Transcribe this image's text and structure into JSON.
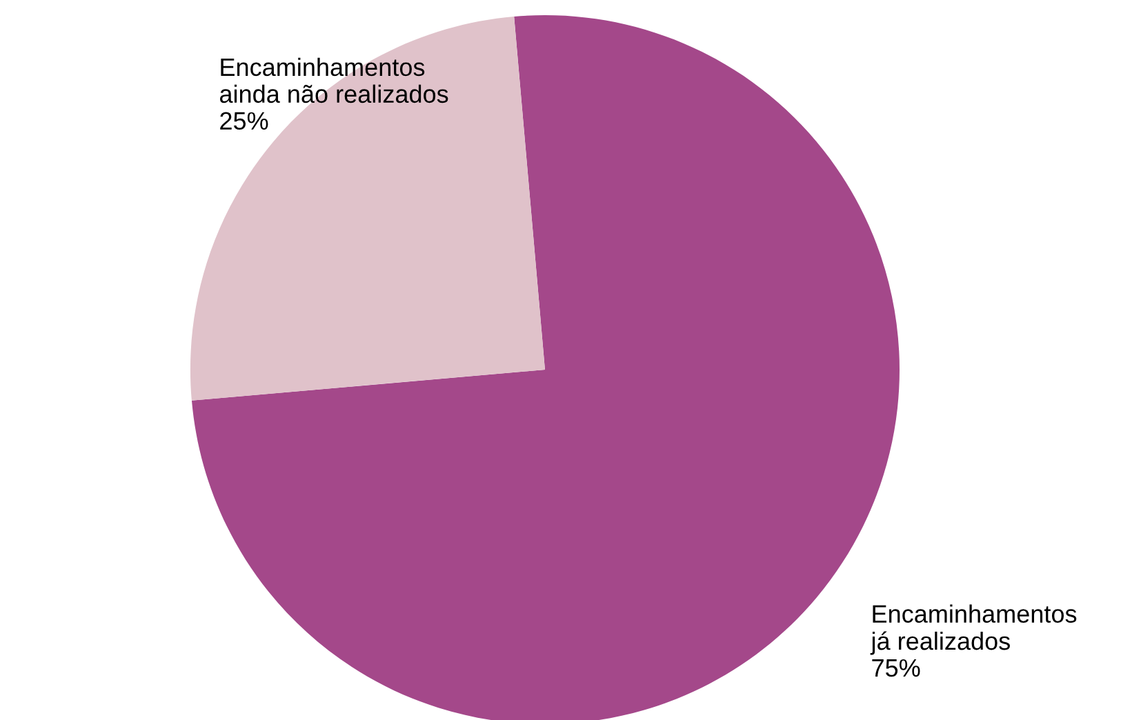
{
  "chart_data": {
    "type": "pie",
    "categories": [
      "Encaminhamentos\njá realizados",
      "Encaminhamentos\nainda não realizados"
    ],
    "values": [
      75,
      25
    ],
    "colors": [
      "#a4488a",
      "#e0c2ca"
    ],
    "value_labels": [
      "75%",
      "25%"
    ],
    "legend": false
  }
}
